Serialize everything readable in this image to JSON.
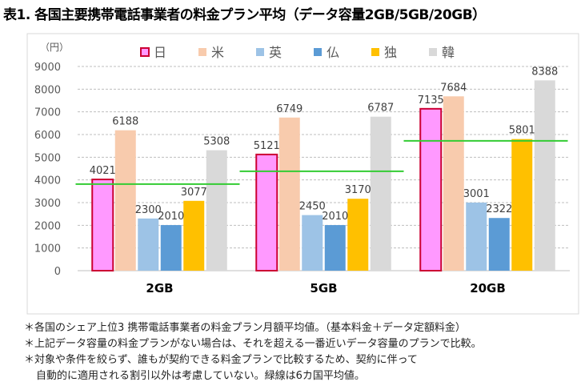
{
  "title": "表1. 各国主要携帯電話事業者の料金プラン平均（データ容量2GB/5GB/20GB）",
  "chart_data": {
    "type": "bar",
    "unit_label": "（円）",
    "categories": [
      "2GB",
      "5GB",
      "20GB"
    ],
    "series": [
      {
        "name": "日",
        "color": "#FF99FF",
        "border": "#CC0033",
        "values": [
          4021,
          5121,
          7135
        ]
      },
      {
        "name": "米",
        "color": "#F8CBAD",
        "values": [
          6188,
          6749,
          7684
        ]
      },
      {
        "name": "英",
        "color": "#9DC3E6",
        "values": [
          2300,
          2450,
          3001
        ]
      },
      {
        "name": "仏",
        "color": "#5B9BD5",
        "values": [
          2010,
          2010,
          2322
        ]
      },
      {
        "name": "独",
        "color": "#FFC000",
        "values": [
          3077,
          3170,
          5801
        ]
      },
      {
        "name": "韓",
        "color": "#D9D9D9",
        "values": [
          5308,
          6787,
          8388
        ]
      }
    ],
    "average_line": {
      "color": "#33CC33",
      "values": [
        3817,
        4381,
        5722
      ]
    },
    "ylim": [
      0,
      9000
    ],
    "yticks": [
      0,
      1000,
      2000,
      3000,
      4000,
      5000,
      6000,
      7000,
      8000,
      9000
    ],
    "grid": true,
    "legend": "top"
  },
  "notes": [
    "＊各国のシェア上位3 携帯電話事業者の料金プラン月額平均値。（基本料金＋データ定額料金）",
    "＊上記データ容量の料金プランがない場合は、それを超える一番近いデータ容量のプランで比較。",
    "＊対象や条件を絞らず、誰もが契約できる料金プランで比較するため、契約に伴って",
    "自動的に適用される割引以外は考慮していない。緑線は6カ国平均値。"
  ]
}
